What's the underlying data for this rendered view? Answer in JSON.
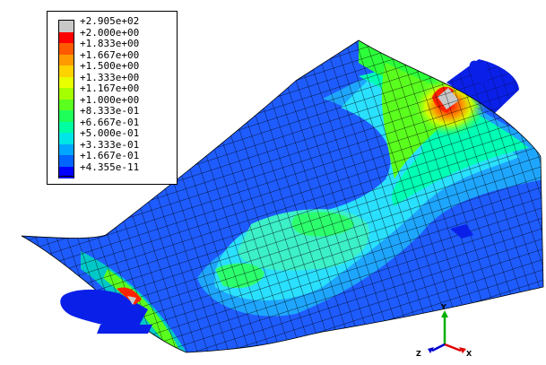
{
  "legend": {
    "entries": [
      {
        "label": "+2.905e+02",
        "color": "#c8c8c8"
      },
      {
        "label": "+2.000e+00",
        "color": "#ff0000"
      },
      {
        "label": "+1.833e+00",
        "color": "#ff5a00"
      },
      {
        "label": "+1.667e+00",
        "color": "#ff9b00"
      },
      {
        "label": "+1.500e+00",
        "color": "#ffd200"
      },
      {
        "label": "+1.333e+00",
        "color": "#e8ff00"
      },
      {
        "label": "+1.167e+00",
        "color": "#a6ff00"
      },
      {
        "label": "+1.000e+00",
        "color": "#5aff1e"
      },
      {
        "label": "+8.333e-01",
        "color": "#1eff5a"
      },
      {
        "label": "+6.667e-01",
        "color": "#00ffa0"
      },
      {
        "label": "+5.000e-01",
        "color": "#00e6e6"
      },
      {
        "label": "+3.333e-01",
        "color": "#00a6ff"
      },
      {
        "label": "+1.667e-01",
        "color": "#0064ff"
      },
      {
        "label": "+4.355e-11",
        "color": "#0000ff"
      }
    ]
  },
  "triad": {
    "y_label": "Y",
    "z_label": "Z",
    "x_label": "X"
  },
  "colors": {
    "background": "#ffffff",
    "mesh_line": "#000000",
    "low": "#0a3cff",
    "high": "#ff0000"
  }
}
